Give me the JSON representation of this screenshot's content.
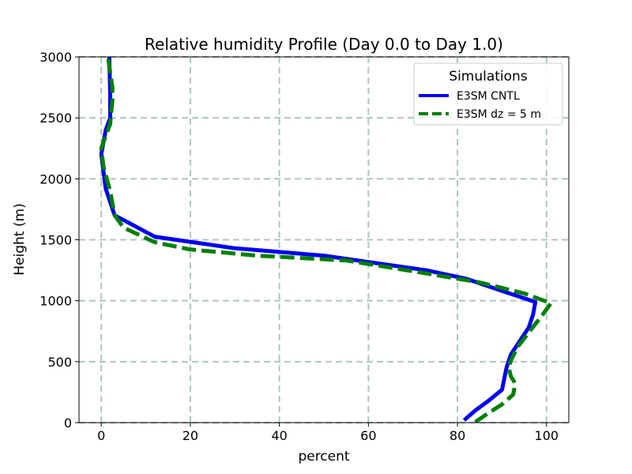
{
  "chart_data": {
    "type": "line",
    "title": "Relative humidity Profile (Day 0.0 to Day 1.0)",
    "xlabel": "percent",
    "ylabel": "Height (m)",
    "xlim": [
      -5,
      105
    ],
    "ylim": [
      0,
      3000
    ],
    "xticks": [
      0,
      20,
      40,
      60,
      80,
      100
    ],
    "yticks": [
      0,
      500,
      1000,
      1500,
      2000,
      2500,
      3000
    ],
    "grid": true,
    "legend": {
      "title": "Simulations",
      "location": "upper right"
    },
    "series": [
      {
        "name": "E3SM CNTL",
        "color": "#0000ee",
        "style": "solid",
        "points": [
          [
            81.5,
            20
          ],
          [
            84,
            100
          ],
          [
            87,
            180
          ],
          [
            90,
            270
          ],
          [
            91,
            450
          ],
          [
            92,
            560
          ],
          [
            94,
            670
          ],
          [
            96,
            780
          ],
          [
            97,
            890
          ],
          [
            97.5,
            990
          ],
          [
            90,
            1080
          ],
          [
            82,
            1180
          ],
          [
            73,
            1250
          ],
          [
            50,
            1370
          ],
          [
            30,
            1430
          ],
          [
            12,
            1525
          ],
          [
            3,
            1700
          ],
          [
            1,
            1920
          ],
          [
            0,
            2200
          ],
          [
            1,
            2400
          ],
          [
            2,
            2500
          ],
          [
            2,
            2700
          ],
          [
            1.8,
            3000
          ]
        ]
      },
      {
        "name": "E3SM dz = 5 m",
        "color": "#007f00",
        "style": "dashed",
        "points": [
          [
            84,
            5
          ],
          [
            87,
            80
          ],
          [
            90,
            150
          ],
          [
            92.5,
            230
          ],
          [
            93,
            320
          ],
          [
            92,
            380
          ],
          [
            91.5,
            450
          ],
          [
            92,
            510
          ],
          [
            93.5,
            620
          ],
          [
            96,
            740
          ],
          [
            99,
            880
          ],
          [
            101,
            980
          ],
          [
            95,
            1060
          ],
          [
            85,
            1150
          ],
          [
            72,
            1230
          ],
          [
            55,
            1330
          ],
          [
            35,
            1370
          ],
          [
            20,
            1420
          ],
          [
            12,
            1480
          ],
          [
            5,
            1600
          ],
          [
            3,
            1700
          ],
          [
            2,
            1900
          ],
          [
            0.5,
            2100
          ],
          [
            0,
            2250
          ],
          [
            1,
            2350
          ],
          [
            2,
            2450
          ],
          [
            2.5,
            2650
          ],
          [
            2.5,
            2750
          ],
          [
            1.5,
            3000
          ]
        ]
      }
    ]
  }
}
